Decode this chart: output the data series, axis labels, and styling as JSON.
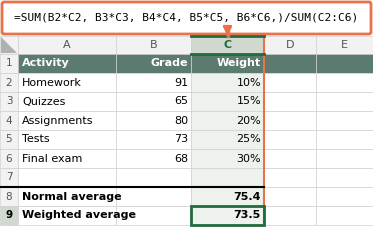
{
  "formula_text": "=SUM(B2*C2, B3*C3, B4*C4, B5*C5, B6*C6,)/SUM(C2:C6)",
  "formula_box_color": "#E8734A",
  "formula_bg": "#FFFFFF",
  "col_headers": [
    "A",
    "B",
    "C",
    "D",
    "E"
  ],
  "row_numbers": [
    "1",
    "2",
    "3",
    "4",
    "5",
    "6",
    "7",
    "8",
    "9"
  ],
  "header_row": [
    "Activity",
    "Grade",
    "Weight"
  ],
  "header_bg": "#5B7B6F",
  "header_text_color": "#FFFFFF",
  "col_header_bg": "#F2F2F2",
  "col_header_selected_bg": "#D0D8D0",
  "row_num_bg": "#F2F2F2",
  "data_rows": [
    [
      "Homework",
      "91",
      "10%"
    ],
    [
      "Quizzes",
      "65",
      "15%"
    ],
    [
      "Assignments",
      "80",
      "20%"
    ],
    [
      "Tests",
      "73",
      "25%"
    ],
    [
      "Final exam",
      "68",
      "30%"
    ]
  ],
  "final_exam_color": "#000000",
  "empty_row": [
    "",
    "",
    ""
  ],
  "summary_rows": [
    [
      "Normal average",
      "",
      "75.4"
    ],
    [
      "Weighted average",
      "",
      "73.5"
    ]
  ],
  "selected_cell_border": "#1F6B3A",
  "col_c_header_border": "#1F6B3A",
  "arrow_color": "#E8734A",
  "grid_color": "#D0D0D0",
  "cell_bg": "#FFFFFF",
  "selected_col_bg": "#EDF3EC",
  "row9_label_bg": "#D0D8D0",
  "text_color": "#000000",
  "bold_color": "#000000"
}
